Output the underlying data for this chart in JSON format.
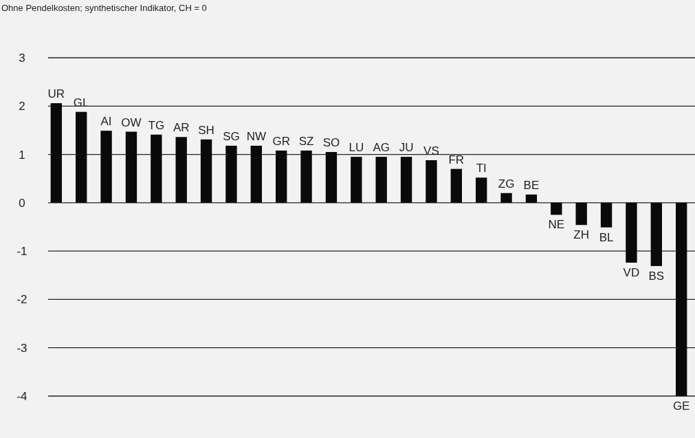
{
  "chart_data": {
    "type": "bar",
    "title": "Ohne Pendelkosten; synthetischer Indikator, CH = 0",
    "categories": [
      "UR",
      "GL",
      "AI",
      "OW",
      "TG",
      "AR",
      "SH",
      "SG",
      "NW",
      "GR",
      "SZ",
      "SO",
      "LU",
      "AG",
      "JU",
      "VS",
      "FR",
      "TI",
      "ZG",
      "BE",
      "NE",
      "ZH",
      "BL",
      "VD",
      "BS",
      "GE"
    ],
    "values": [
      2.06,
      1.88,
      1.49,
      1.47,
      1.41,
      1.36,
      1.31,
      1.18,
      1.18,
      1.08,
      1.08,
      1.05,
      0.95,
      0.95,
      0.95,
      0.88,
      0.7,
      0.52,
      0.2,
      0.17,
      -0.25,
      -0.46,
      -0.51,
      -1.24,
      -1.31,
      -4.0
    ],
    "color": "#0a0a0a",
    "ylim": [
      -4,
      3
    ],
    "yticks": [
      -4,
      -3,
      -2,
      -1,
      0,
      1,
      2,
      3
    ],
    "grid": "y"
  }
}
